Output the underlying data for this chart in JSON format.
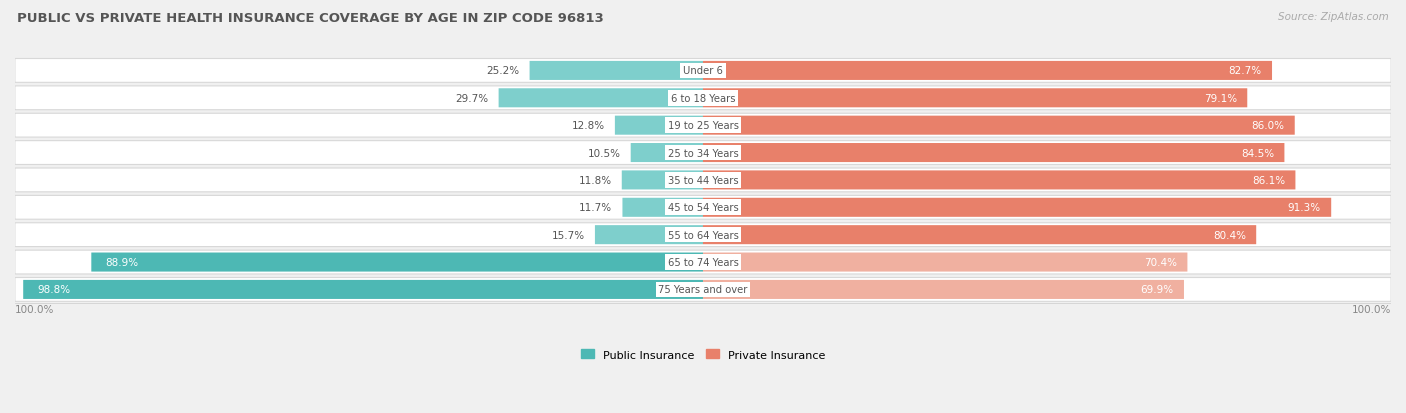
{
  "title": "PUBLIC VS PRIVATE HEALTH INSURANCE COVERAGE BY AGE IN ZIP CODE 96813",
  "source": "Source: ZipAtlas.com",
  "categories": [
    "Under 6",
    "6 to 18 Years",
    "19 to 25 Years",
    "25 to 34 Years",
    "35 to 44 Years",
    "45 to 54 Years",
    "55 to 64 Years",
    "65 to 74 Years",
    "75 Years and over"
  ],
  "public_values": [
    25.2,
    29.7,
    12.8,
    10.5,
    11.8,
    11.7,
    15.7,
    88.9,
    98.8
  ],
  "private_values": [
    82.7,
    79.1,
    86.0,
    84.5,
    86.1,
    91.3,
    80.4,
    70.4,
    69.9
  ],
  "public_color_strong": "#4db8b4",
  "public_color_light": "#7ecfcc",
  "private_color_strong": "#e8806a",
  "private_color_light": "#f0b0a0",
  "bg_color": "#f0f0f0",
  "row_bg_color": "#ffffff",
  "row_border_color": "#d8d8d8",
  "title_color": "#555555",
  "label_color": "#555555",
  "source_color": "#aaaaaa",
  "bottom_tick_color": "#888888",
  "max_val": 100.0,
  "figsize": [
    14.06,
    4.14
  ],
  "dpi": 100,
  "strong_threshold_public": 40.0,
  "strong_threshold_private": 75.0
}
